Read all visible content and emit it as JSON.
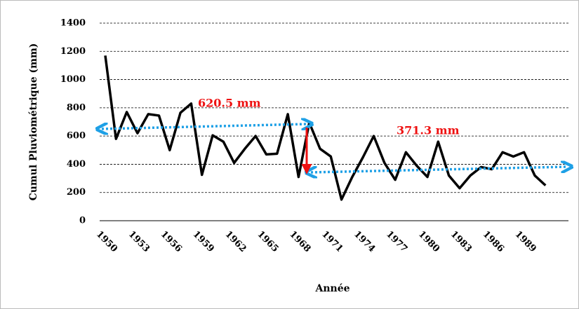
{
  "chart_data": {
    "type": "line",
    "y_label": "Cumul Pluviométrique (mm)",
    "x_label": "Année",
    "annotations": [
      "620.5 mm",
      "371.3 mm"
    ],
    "categories": [
      "1950",
      null,
      null,
      "1953",
      null,
      null,
      "1956",
      null,
      null,
      "1959",
      null,
      null,
      "1962",
      null,
      null,
      "1965",
      null,
      null,
      "1968",
      null,
      null,
      "1971",
      null,
      null,
      "1974",
      null,
      null,
      "1977",
      null,
      null,
      "1980",
      null,
      null,
      "1983",
      null,
      null,
      "1986",
      null,
      null,
      "1989",
      null,
      null
    ],
    "values": [
      1170,
      580,
      770,
      620,
      755,
      745,
      500,
      765,
      830,
      325,
      605,
      560,
      410,
      510,
      600,
      470,
      475,
      755,
      310,
      695,
      510,
      455,
      150,
      310,
      450,
      600,
      410,
      290,
      485,
      390,
      310,
      560,
      320,
      230,
      320,
      380,
      365,
      485,
      455,
      485,
      320,
      250
    ],
    "color": "#000000",
    "ylim": [
      0,
      1400
    ],
    "yticks": [
      0,
      200,
      400,
      600,
      800,
      1000,
      1200,
      1400
    ],
    "grid": true
  }
}
